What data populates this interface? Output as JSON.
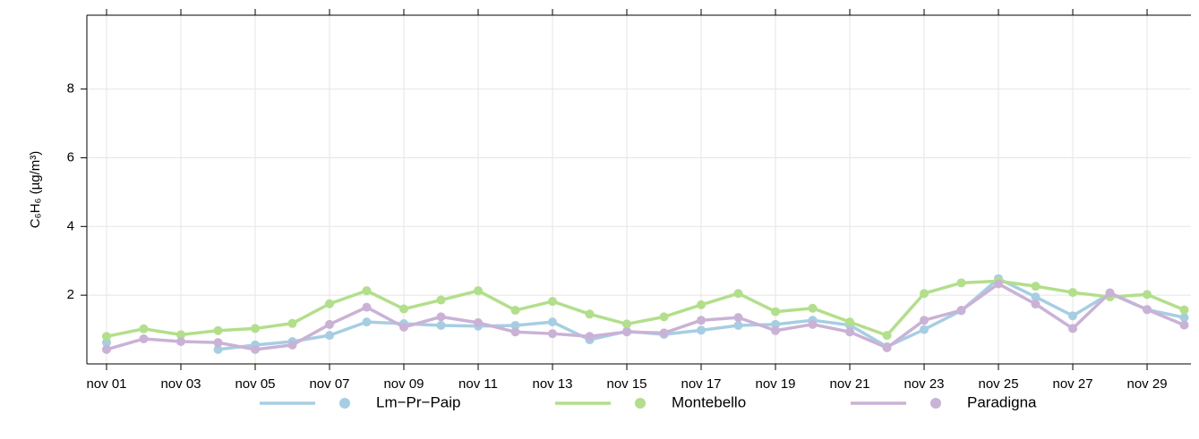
{
  "chart_data": {
    "type": "line",
    "y_label": "C₆H₆ (µg/m³)",
    "x": [
      1,
      2,
      3,
      4,
      5,
      6,
      7,
      8,
      9,
      10,
      11,
      12,
      13,
      14,
      15,
      16,
      17,
      18,
      19,
      20,
      21,
      22,
      23,
      24,
      25,
      26,
      27,
      28,
      29,
      30
    ],
    "xlim": [
      0.47,
      30.18
    ],
    "xticks": [
      {
        "value": 1,
        "label": "nov 01"
      },
      {
        "value": 3,
        "label": "nov 03"
      },
      {
        "value": 5,
        "label": "nov 05"
      },
      {
        "value": 7,
        "label": "nov 07"
      },
      {
        "value": 9,
        "label": "nov 09"
      },
      {
        "value": 11,
        "label": "nov 11"
      },
      {
        "value": 13,
        "label": "nov 13"
      },
      {
        "value": 15,
        "label": "nov 15"
      },
      {
        "value": 17,
        "label": "nov 17"
      },
      {
        "value": 19,
        "label": "nov 19"
      },
      {
        "value": 21,
        "label": "nov 21"
      },
      {
        "value": 23,
        "label": "nov 23"
      },
      {
        "value": 25,
        "label": "nov 25"
      },
      {
        "value": 27,
        "label": "nov 27"
      },
      {
        "value": 29,
        "label": "nov 29"
      }
    ],
    "ylim": [
      0,
      10.15
    ],
    "yticks": [
      2,
      4,
      6,
      8
    ],
    "grid": true,
    "legend": "bottom",
    "series": [
      {
        "name": "Lm−Pr−Paip",
        "color": "#a6cee3",
        "values": [
          0.62,
          null,
          null,
          0.42,
          0.55,
          0.65,
          0.83,
          1.22,
          1.17,
          1.12,
          1.1,
          1.12,
          1.22,
          0.7,
          0.95,
          0.86,
          0.98,
          1.12,
          1.15,
          1.27,
          1.13,
          0.5,
          1.0,
          1.55,
          2.48,
          1.95,
          1.4,
          2.05,
          1.58,
          1.35
        ]
      },
      {
        "name": "Montebello",
        "color": "#b2df8a",
        "values": [
          0.8,
          1.02,
          0.85,
          0.97,
          1.03,
          1.18,
          1.75,
          2.13,
          1.6,
          1.86,
          2.13,
          1.56,
          1.82,
          1.45,
          1.16,
          1.37,
          1.72,
          2.05,
          1.52,
          1.62,
          1.22,
          0.83,
          2.05,
          2.36,
          2.41,
          2.26,
          2.08,
          1.95,
          2.02,
          1.57
        ]
      },
      {
        "name": "Paradigna",
        "color": "#cab2d6",
        "values": [
          0.42,
          0.73,
          0.65,
          0.62,
          0.42,
          0.55,
          1.15,
          1.65,
          1.07,
          1.37,
          1.2,
          0.93,
          0.88,
          0.8,
          0.93,
          0.9,
          1.27,
          1.35,
          0.97,
          1.15,
          0.93,
          0.47,
          1.27,
          1.56,
          2.33,
          1.74,
          1.03,
          2.07,
          1.58,
          1.13
        ]
      }
    ]
  }
}
